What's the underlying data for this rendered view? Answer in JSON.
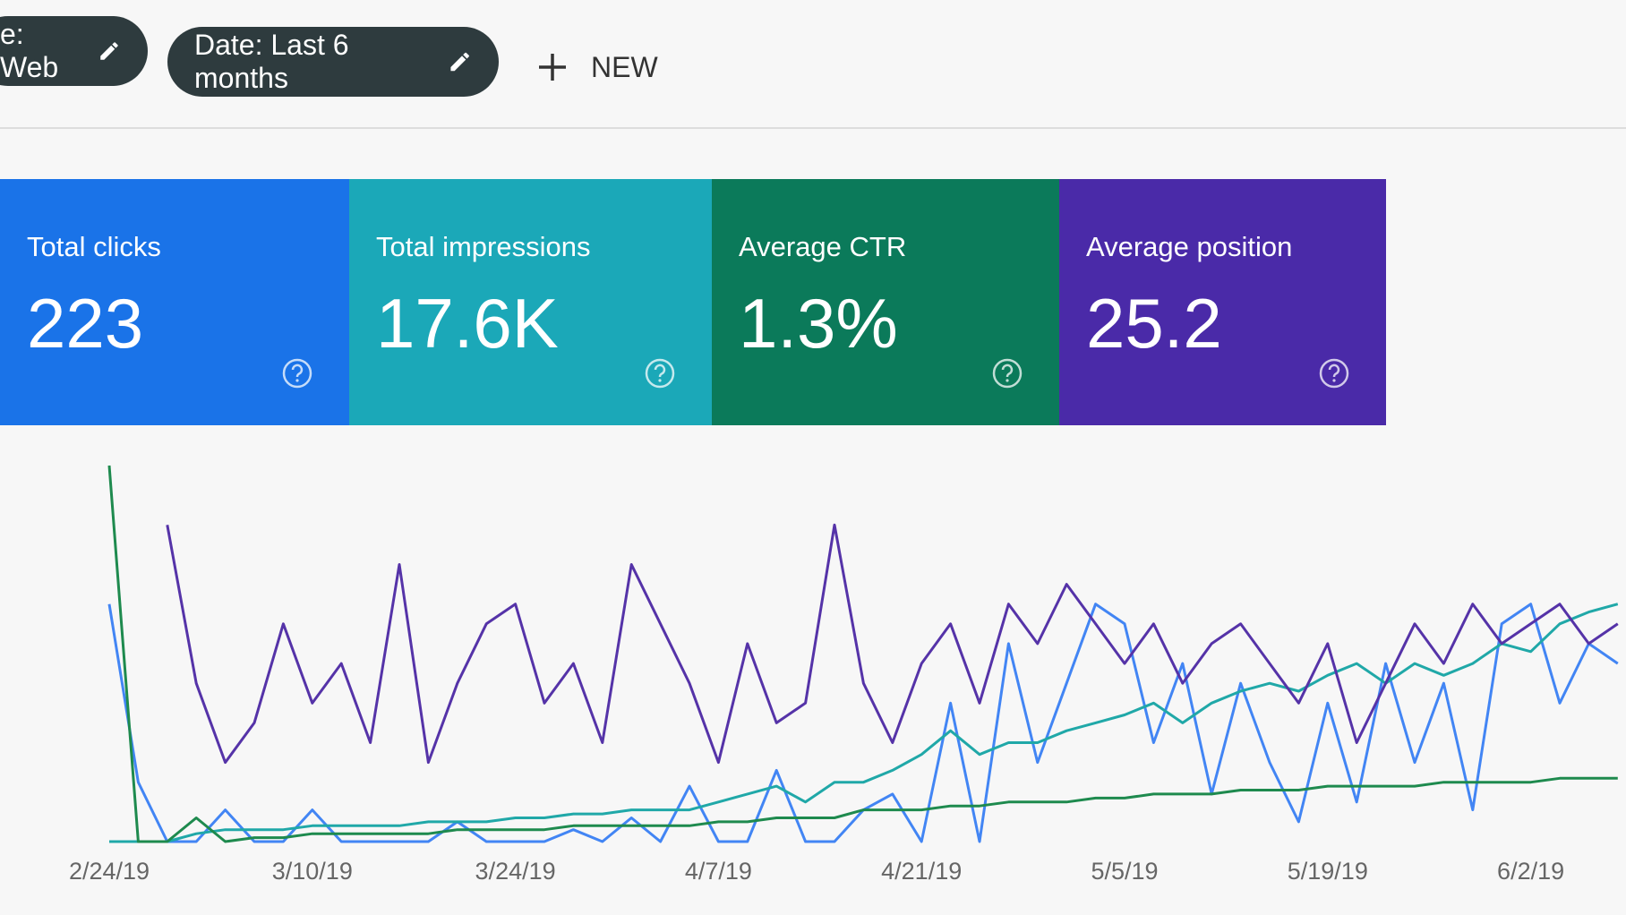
{
  "filters": {
    "chips": [
      "e: Web",
      "Date: Last 6 months"
    ],
    "new_button": "NEW"
  },
  "metrics": [
    {
      "label": "Total clicks",
      "value": "223",
      "color": "#1a73e8"
    },
    {
      "label": "Total impressions",
      "value": "17.6K",
      "color": "#1ba8b8"
    },
    {
      "label": "Average CTR",
      "value": "1.3%",
      "color": "#0b7a5a"
    },
    {
      "label": "Average position",
      "value": "25.2",
      "color": "#4a2aa8"
    }
  ],
  "chart_data": {
    "type": "line",
    "categories": [
      "2/24/19",
      null,
      null,
      null,
      null,
      null,
      null,
      "3/10/19",
      null,
      null,
      null,
      null,
      null,
      null,
      "3/24/19",
      null,
      null,
      null,
      null,
      null,
      null,
      "4/7/19",
      null,
      null,
      null,
      null,
      null,
      null,
      "4/21/19",
      null,
      null,
      null,
      null,
      null,
      null,
      "5/5/19",
      null,
      null,
      null,
      null,
      null,
      null,
      "5/19/19",
      null,
      null,
      null,
      null,
      null,
      null,
      "6/2/19",
      null,
      null,
      null
    ],
    "series": [
      {
        "name": "Total clicks",
        "color": "#4285f4",
        "values": [
          60,
          15,
          0,
          0,
          8,
          0,
          0,
          8,
          0,
          0,
          0,
          0,
          5,
          0,
          0,
          0,
          3,
          0,
          6,
          0,
          14,
          0,
          0,
          18,
          0,
          0,
          8,
          12,
          0,
          35,
          0,
          50,
          20,
          40,
          60,
          55,
          25,
          45,
          12,
          40,
          20,
          5,
          35,
          10,
          45,
          20,
          40,
          8,
          55,
          60,
          35,
          50,
          45
        ]
      },
      {
        "name": "Total impressions",
        "color": "#20a8a8",
        "values": [
          0,
          0,
          0,
          2,
          3,
          3,
          3,
          4,
          4,
          4,
          4,
          5,
          5,
          5,
          6,
          6,
          7,
          7,
          8,
          8,
          8,
          10,
          12,
          14,
          10,
          15,
          15,
          18,
          22,
          28,
          22,
          25,
          25,
          28,
          30,
          32,
          35,
          30,
          35,
          38,
          40,
          38,
          42,
          45,
          40,
          45,
          42,
          45,
          50,
          48,
          55,
          58,
          60
        ]
      },
      {
        "name": "Average CTR",
        "color": "#1e8a4e",
        "values": [
          95,
          0,
          0,
          6,
          0,
          1,
          1,
          2,
          2,
          2,
          2,
          2,
          3,
          3,
          3,
          3,
          4,
          4,
          4,
          4,
          4,
          5,
          5,
          6,
          6,
          6,
          8,
          8,
          8,
          9,
          9,
          10,
          10,
          10,
          11,
          11,
          12,
          12,
          12,
          13,
          13,
          13,
          14,
          14,
          14,
          14,
          15,
          15,
          15,
          15,
          16,
          16,
          16
        ]
      },
      {
        "name": "Average position",
        "color": "#5533a8",
        "values": [
          null,
          null,
          80,
          40,
          20,
          30,
          55,
          35,
          45,
          25,
          70,
          20,
          40,
          55,
          60,
          35,
          45,
          25,
          70,
          55,
          40,
          20,
          50,
          30,
          35,
          80,
          40,
          25,
          45,
          55,
          35,
          60,
          50,
          65,
          55,
          45,
          55,
          40,
          50,
          55,
          45,
          35,
          50,
          25,
          40,
          55,
          45,
          60,
          50,
          55,
          60,
          50,
          55
        ]
      }
    ]
  }
}
